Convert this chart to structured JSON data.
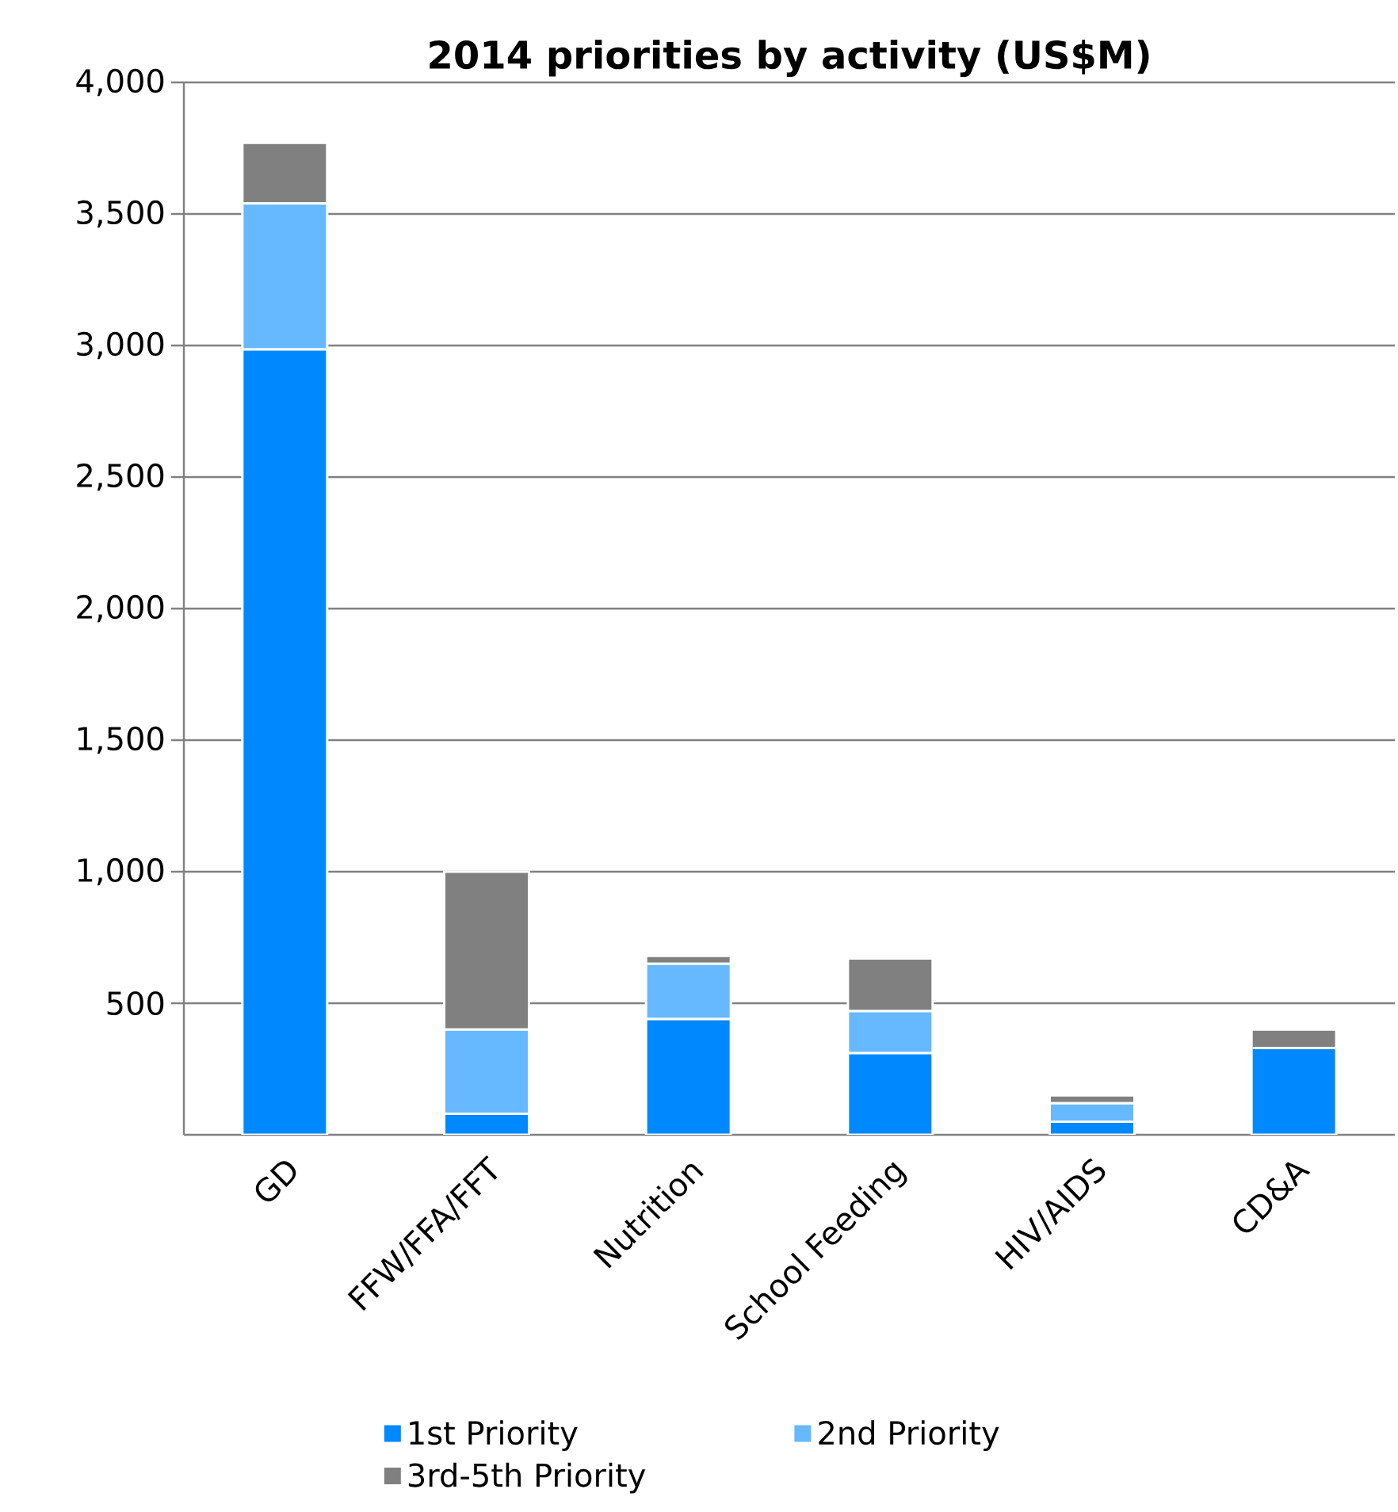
{
  "chart_data": {
    "type": "bar",
    "title": "2014 priorities by activity (US$M)",
    "stacked": true,
    "categories": [
      "GD",
      "FFW/FFA/FFT",
      "Nutrition",
      "School Feeding",
      "HIV/AIDS",
      "CD&A"
    ],
    "series": [
      {
        "name": "1st Priority",
        "color": "#0088ff",
        "values": [
          2985,
          80,
          440,
          310,
          50,
          330
        ]
      },
      {
        "name": "2nd Priority",
        "color": "#66b8ff",
        "values": [
          555,
          320,
          210,
          160,
          70,
          null
        ]
      },
      {
        "name": "3rd-5th Priority",
        "color": "#808080",
        "values": [
          230,
          600,
          30,
          200,
          30,
          70
        ]
      }
    ],
    "ylim": [
      0,
      4000
    ],
    "yticks": [
      {
        "value": 500,
        "label": "500"
      },
      {
        "value": 1000,
        "label": "1,000"
      },
      {
        "value": 1500,
        "label": "1,500"
      },
      {
        "value": 2000,
        "label": "2,000"
      },
      {
        "value": 2500,
        "label": "2,500"
      },
      {
        "value": 3000,
        "label": "3,000"
      },
      {
        "value": 3500,
        "label": "3,500"
      },
      {
        "value": 4000,
        "label": "4,000"
      }
    ],
    "grid": "y",
    "legend": "bottom"
  }
}
